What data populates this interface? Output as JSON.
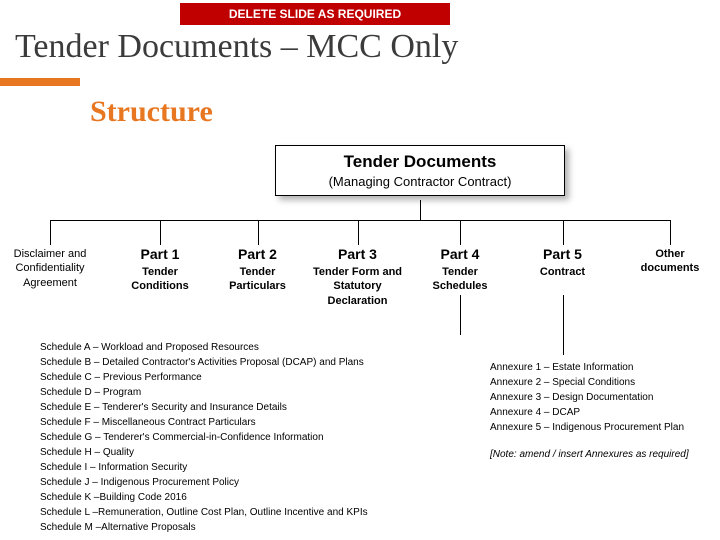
{
  "banner": "DELETE SLIDE AS REQUIRED",
  "slideTitle": "Tender Documents – MCC Only",
  "heading": "Structure",
  "root": {
    "title": "Tender Documents",
    "subtitle": "(Managing Contractor Contract)"
  },
  "parts": [
    {
      "title": "",
      "sub": "Disclaimer and Confidentiality Agreement",
      "weight": "light"
    },
    {
      "title": "Part 1",
      "sub": "Tender Conditions",
      "weight": "bold"
    },
    {
      "title": "Part 2",
      "sub": "Tender Particulars",
      "weight": "bold"
    },
    {
      "title": "Part 3",
      "sub": "Tender Form and Statutory Declaration",
      "weight": "bold"
    },
    {
      "title": "Part 4",
      "sub": "Tender Schedules",
      "weight": "bold"
    },
    {
      "title": "Part 5",
      "sub": "Contract",
      "weight": "bold"
    },
    {
      "title": "",
      "sub": "Other documents",
      "weight": "bold"
    }
  ],
  "schedules": [
    "Schedule A – Workload and Proposed Resources",
    "Schedule B – Detailed Contractor's Activities Proposal (DCAP) and Plans",
    "Schedule C – Previous Performance",
    "Schedule D – Program",
    "Schedule E – Tenderer's Security and Insurance Details",
    "Schedule F – Miscellaneous Contract Particulars",
    "Schedule G – Tenderer's Commercial-in-Confidence Information",
    "Schedule H – Quality",
    "Schedule I  – Information Security",
    "Schedule J  – Indigenous Procurement Policy",
    "Schedule K –Building Code 2016",
    "Schedule L –Remuneration, Outline Cost Plan, Outline Incentive and KPIs",
    "Schedule M –Alternative Proposals"
  ],
  "annexures": [
    "Annexure 1 – Estate Information",
    "Annexure 2 – Special Conditions",
    "Annexure 3 –  Design Documentation",
    "Annexure  4 –  DCAP",
    "Annexure  5 –  Indigenous Procurement Plan"
  ],
  "annexureNote": "[Note: amend / insert Annexures as required]",
  "colors": {
    "bannerBg": "#c00000",
    "orange": "#e87722",
    "text": "#3b3b3b"
  },
  "layout": {
    "partX": [
      0,
      115,
      215,
      305,
      415,
      520,
      625
    ],
    "partW": [
      100,
      90,
      85,
      105,
      90,
      85,
      90
    ],
    "partTop": 245,
    "connectorTop": 200,
    "connectorMid": 220
  }
}
